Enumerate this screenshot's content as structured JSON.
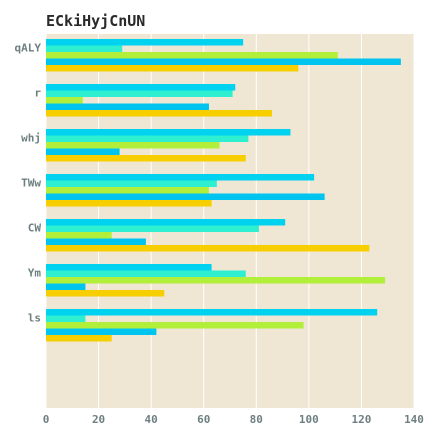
{
  "chart_data": {
    "type": "bar",
    "orientation": "horizontal",
    "title": "ECkiHyjCnUN",
    "xlabel": "",
    "ylabel": "",
    "xlim": [
      0,
      140
    ],
    "xticks": [
      0,
      20,
      40,
      60,
      80,
      100,
      120,
      140
    ],
    "grid": true,
    "legend": "none",
    "categories": [
      "qALY",
      "r",
      "whj",
      "TWw",
      "CW",
      "Ym",
      "ls"
    ],
    "series": [
      {
        "color": "#00d2f0",
        "values": [
          75,
          72,
          93,
          102,
          91,
          63,
          126
        ]
      },
      {
        "color": "#2ef0d0",
        "values": [
          29,
          71,
          77,
          65,
          81,
          76,
          15
        ]
      },
      {
        "color": "#b2ef3a",
        "values": [
          111,
          14,
          66,
          62,
          25,
          129,
          98
        ]
      },
      {
        "color": "#00c4f0",
        "values": [
          135,
          62,
          28,
          106,
          38,
          15,
          42
        ]
      },
      {
        "color": "#f7cf00",
        "values": [
          96,
          86,
          76,
          63,
          123,
          45,
          25
        ]
      }
    ],
    "background": "#efe7d3"
  }
}
